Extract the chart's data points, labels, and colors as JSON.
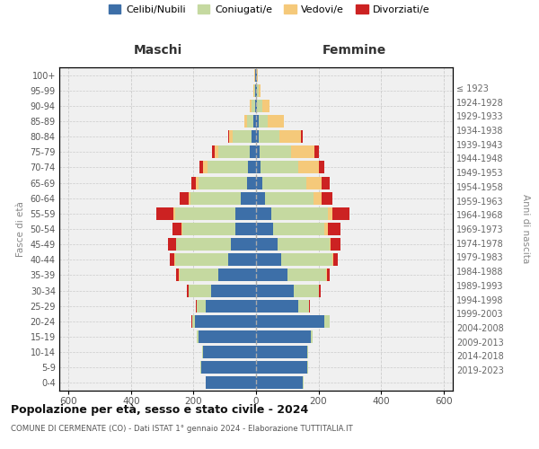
{
  "age_groups": [
    "0-4",
    "5-9",
    "10-14",
    "15-19",
    "20-24",
    "25-29",
    "30-34",
    "35-39",
    "40-44",
    "45-49",
    "50-54",
    "55-59",
    "60-64",
    "65-69",
    "70-74",
    "75-79",
    "80-84",
    "85-89",
    "90-94",
    "95-99",
    "100+"
  ],
  "birth_years": [
    "2019-2023",
    "2014-2018",
    "2009-2013",
    "2004-2008",
    "1999-2003",
    "1994-1998",
    "1989-1993",
    "1984-1988",
    "1979-1983",
    "1974-1978",
    "1969-1973",
    "1964-1968",
    "1959-1963",
    "1954-1958",
    "1949-1953",
    "1944-1948",
    "1939-1943",
    "1934-1938",
    "1929-1933",
    "1924-1928",
    "≤ 1923"
  ],
  "maschi": {
    "celibi": [
      160,
      175,
      170,
      185,
      195,
      160,
      145,
      120,
      90,
      80,
      65,
      65,
      50,
      30,
      25,
      20,
      15,
      8,
      4,
      3,
      2
    ],
    "coniugati": [
      2,
      2,
      2,
      5,
      10,
      30,
      70,
      125,
      170,
      175,
      170,
      195,
      160,
      155,
      130,
      100,
      60,
      20,
      10,
      4,
      2
    ],
    "vedovi": [
      0,
      0,
      0,
      1,
      0,
      1,
      1,
      2,
      1,
      2,
      3,
      5,
      5,
      8,
      15,
      12,
      10,
      8,
      5,
      2,
      1
    ],
    "divorziati": [
      0,
      0,
      0,
      0,
      1,
      3,
      5,
      10,
      15,
      25,
      30,
      55,
      30,
      15,
      12,
      10,
      5,
      0,
      0,
      0,
      0
    ]
  },
  "femmine": {
    "nubili": [
      150,
      165,
      165,
      175,
      220,
      135,
      120,
      100,
      80,
      70,
      55,
      50,
      30,
      20,
      15,
      12,
      10,
      8,
      4,
      3,
      2
    ],
    "coniugate": [
      2,
      2,
      2,
      5,
      15,
      35,
      80,
      125,
      165,
      165,
      165,
      180,
      155,
      140,
      120,
      100,
      65,
      30,
      15,
      5,
      2
    ],
    "vedove": [
      0,
      0,
      0,
      0,
      0,
      1,
      1,
      2,
      2,
      5,
      10,
      15,
      25,
      50,
      65,
      75,
      70,
      50,
      25,
      5,
      2
    ],
    "divorziate": [
      0,
      0,
      0,
      0,
      1,
      3,
      5,
      10,
      15,
      30,
      40,
      55,
      35,
      25,
      18,
      15,
      5,
      0,
      0,
      0,
      0
    ]
  },
  "colors": {
    "celibi_nubili": "#3d6fa8",
    "coniugati": "#c5d9a0",
    "vedovi": "#f5c97a",
    "divorziati": "#cc2222"
  },
  "xlim": 630,
  "title": "Popolazione per età, sesso e stato civile - 2024",
  "subtitle": "COMUNE DI CERMENATE (CO) - Dati ISTAT 1° gennaio 2024 - Elaborazione TUTTITALIA.IT",
  "ylabel_left": "Fasce di età",
  "ylabel_right": "Anni di nascita",
  "xlabel_left": "Maschi",
  "xlabel_right": "Femmine",
  "bg_color": "#f0f0f0",
  "grid_color": "#cccccc"
}
